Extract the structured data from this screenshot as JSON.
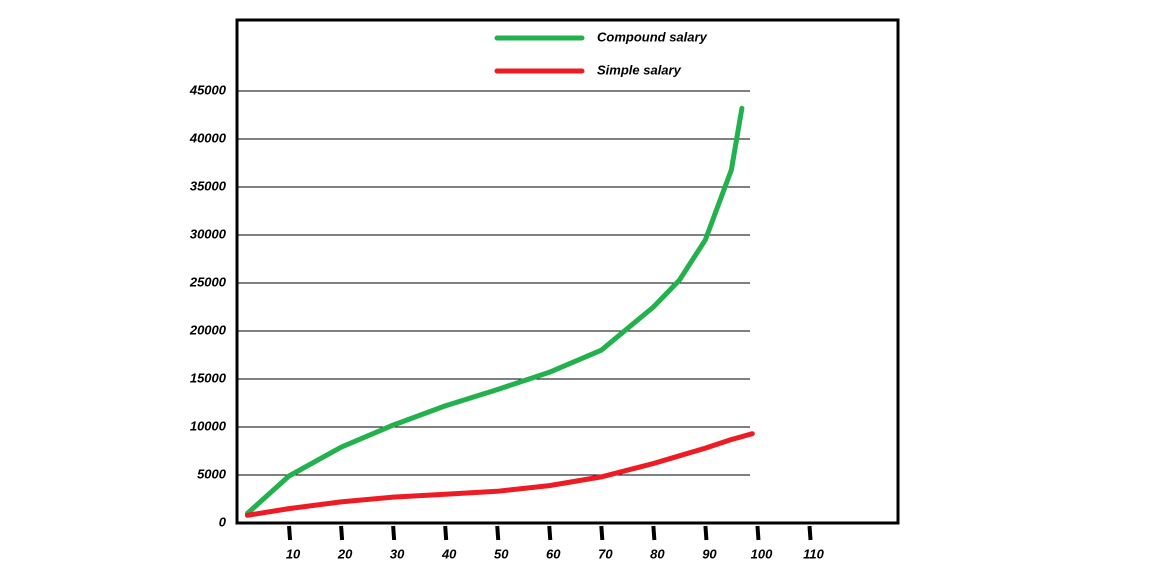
{
  "chart_data": {
    "type": "line",
    "x": [
      2,
      10,
      20,
      30,
      40,
      50,
      60,
      70,
      80,
      85,
      90,
      95,
      97,
      99
    ],
    "series": [
      {
        "name": "Compound salary",
        "color": "#22b14c",
        "values": [
          1000,
          4900,
          7900,
          10200,
          12200,
          13900,
          15700,
          18000,
          22500,
          25300,
          29500,
          36800,
          43200,
          null
        ]
      },
      {
        "name": "Simple salary",
        "color": "#ed1c24",
        "values": [
          800,
          1500,
          2200,
          2700,
          3000,
          3300,
          3900,
          4800,
          6200,
          7000,
          7800,
          8700,
          9000,
          9300
        ]
      }
    ],
    "xlim": [
      0,
      127
    ],
    "ylim": [
      0,
      52400
    ],
    "xticks": [
      10,
      20,
      30,
      40,
      50,
      60,
      70,
      80,
      90,
      100,
      110
    ],
    "yticks": [
      0,
      5000,
      10000,
      15000,
      20000,
      25000,
      30000,
      35000,
      40000,
      45000
    ],
    "grid": true
  }
}
